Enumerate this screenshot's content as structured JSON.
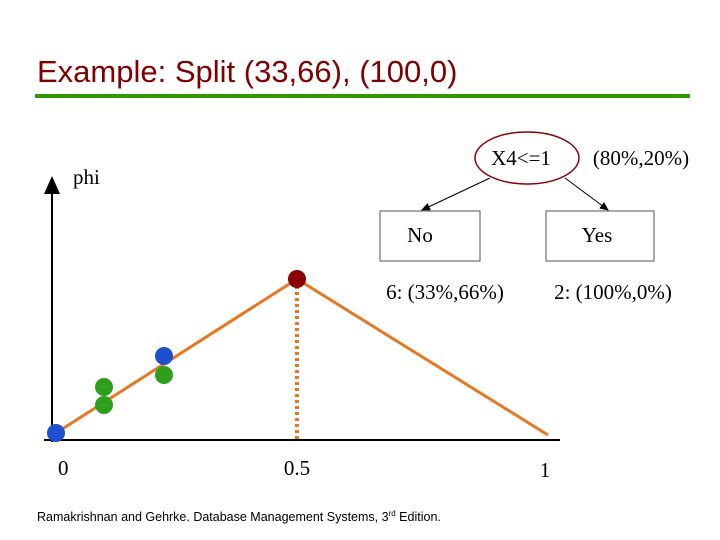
{
  "header": {
    "title": "Example: Split (33,66), (100,0)"
  },
  "plot": {
    "axis_label": "phi",
    "x_labels": [
      "0",
      "0.5",
      "1"
    ]
  },
  "tree": {
    "root": {
      "label": "X4<=1",
      "distribution": "(80%,20%)"
    },
    "branches": [
      {
        "label": "No",
        "leaf": "6: (33%,66%)"
      },
      {
        "label": "Yes",
        "leaf": "2: (100%,0%)"
      }
    ]
  },
  "footer": {
    "text": "Ramakrishnan and Gehrke. Database Management Systems, 3",
    "superscript": "rd",
    "suffix": " Edition."
  }
}
